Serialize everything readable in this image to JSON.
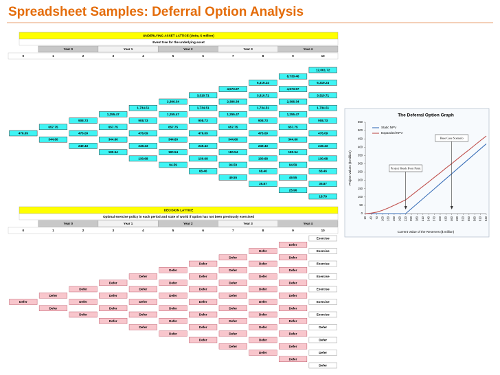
{
  "title": "Spreadsheet Samples: Deferral Option Analysis",
  "asset_lattice": {
    "header": "UNDERLYING ASSET LATTICE (Units, $ million)",
    "subtitle": "Event tree for the underlying asset",
    "years": [
      "Year 0",
      "Year 1",
      "Year 2",
      "Year 3",
      "Year 4"
    ],
    "steps": [
      0,
      1,
      2,
      3,
      4,
      5,
      6,
      7,
      8,
      9,
      10
    ],
    "columns": [
      [
        "476.09"
      ],
      [
        "657.75",
        "344.60"
      ],
      [
        "908.73",
        "476.09",
        "249.43"
      ],
      [
        "1,255.47",
        "657.75",
        "344.60",
        "180.54"
      ],
      [
        "1,734.51",
        "908.73",
        "476.09",
        "249.43",
        "130.68"
      ],
      [
        "2,396.34",
        "1,255.47",
        "657.75",
        "344.60",
        "180.54",
        "94.59"
      ],
      [
        "3,310.71",
        "1,734.51",
        "908.73",
        "476.09",
        "249.43",
        "130.68",
        "68.46"
      ],
      [
        "4,573.97",
        "2,396.34",
        "1,255.47",
        "657.75",
        "344.60",
        "180.54",
        "94.59",
        "49.55"
      ],
      [
        "6,319.24",
        "3,310.71",
        "1,734.51",
        "908.73",
        "476.09",
        "249.43",
        "130.68",
        "68.46",
        "35.87"
      ],
      [
        "8,730.46",
        "4,573.97",
        "2,396.34",
        "1,255.47",
        "657.75",
        "344.60",
        "180.54",
        "94.59",
        "49.55",
        "25.96"
      ],
      [
        "12,061.72",
        "6,319.24",
        "3,310.71",
        "1,734.51",
        "908.73",
        "476.09",
        "249.43",
        "130.68",
        "68.46",
        "35.87",
        "18.79"
      ]
    ]
  },
  "decision_lattice": {
    "header": "DECISION LATTICE",
    "subtitle": "Optimal exercise policy in each period and state of world if option has not been previously exercised",
    "years": [
      "Year 0",
      "Year 1",
      "Year 2",
      "Year 3",
      "Year 4"
    ],
    "steps": [
      0,
      1,
      2,
      3,
      4,
      5,
      6,
      7,
      8,
      9,
      10
    ],
    "columns": [
      [
        "Defer"
      ],
      [
        "Defer",
        "Defer"
      ],
      [
        "Defer",
        "Defer",
        "Defer"
      ],
      [
        "Defer",
        "Defer",
        "Defer",
        "Defer"
      ],
      [
        "Defer",
        "Defer",
        "Defer",
        "Defer",
        "Defer"
      ],
      [
        "Defer",
        "Defer",
        "Defer",
        "Defer",
        "Defer",
        "Defer"
      ],
      [
        "Defer",
        "Defer",
        "Defer",
        "Defer",
        "Defer",
        "Defer",
        "Defer"
      ],
      [
        "Defer",
        "Defer",
        "Defer",
        "Defer",
        "Defer",
        "Defer",
        "Defer",
        "Defer"
      ],
      [
        "Defer",
        "Defer",
        "Defer",
        "Defer",
        "Defer",
        "Defer",
        "Defer",
        "Defer",
        "Defer"
      ],
      [
        "Defer",
        "Defer",
        "Defer",
        "Defer",
        "Defer",
        "Defer",
        "Defer",
        "Defer",
        "Defer",
        "Defer"
      ],
      [
        "Exercise",
        "Exercise",
        "Exercise",
        "Exercise",
        "Exercise",
        "Exercise",
        "Exercise",
        "Defer",
        "Defer",
        "Defer",
        "Defer"
      ]
    ]
  },
  "chart_data": {
    "type": "line",
    "title": "The Deferral Option Graph",
    "xlabel": "Current Value of the Reserves ($ million)",
    "ylabel": "Project Values ($ million)",
    "x": [
      10,
      40,
      70,
      100,
      130,
      160,
      190,
      220,
      250,
      280,
      310,
      340,
      370,
      400,
      430,
      460,
      490,
      520,
      550,
      580,
      610,
      640
    ],
    "series": [
      {
        "name": "Static NPV",
        "color": "#3a6fb8",
        "values": [
          0,
          0,
          0,
          0,
          0,
          0,
          0,
          0,
          30,
          60,
          90,
          120,
          150,
          180,
          210,
          240,
          270,
          300,
          330,
          360,
          390,
          420
        ]
      },
      {
        "name": "Expanded NPV",
        "color": "#c0504d",
        "values": [
          0,
          3,
          9,
          20,
          34,
          50,
          66,
          83,
          110,
          137,
          164,
          191,
          219,
          246,
          274,
          301,
          329,
          357,
          384,
          412,
          440,
          467
        ]
      }
    ],
    "xlim": [
      10,
      640
    ],
    "xticks": [
      10,
      40,
      70,
      100,
      130,
      160,
      190,
      220,
      250,
      280,
      310,
      340,
      370,
      400,
      430,
      460,
      490,
      520,
      550,
      580,
      610,
      640
    ],
    "ylim": [
      0,
      550
    ],
    "yticks": [
      0,
      50,
      100,
      150,
      200,
      250,
      300,
      350,
      400,
      450,
      500,
      550
    ],
    "legend": "upper left",
    "annotations": [
      {
        "text": "Project Break Even Point",
        "x": 220
      },
      {
        "text": "Base Case Scenario",
        "x": 460
      }
    ]
  }
}
